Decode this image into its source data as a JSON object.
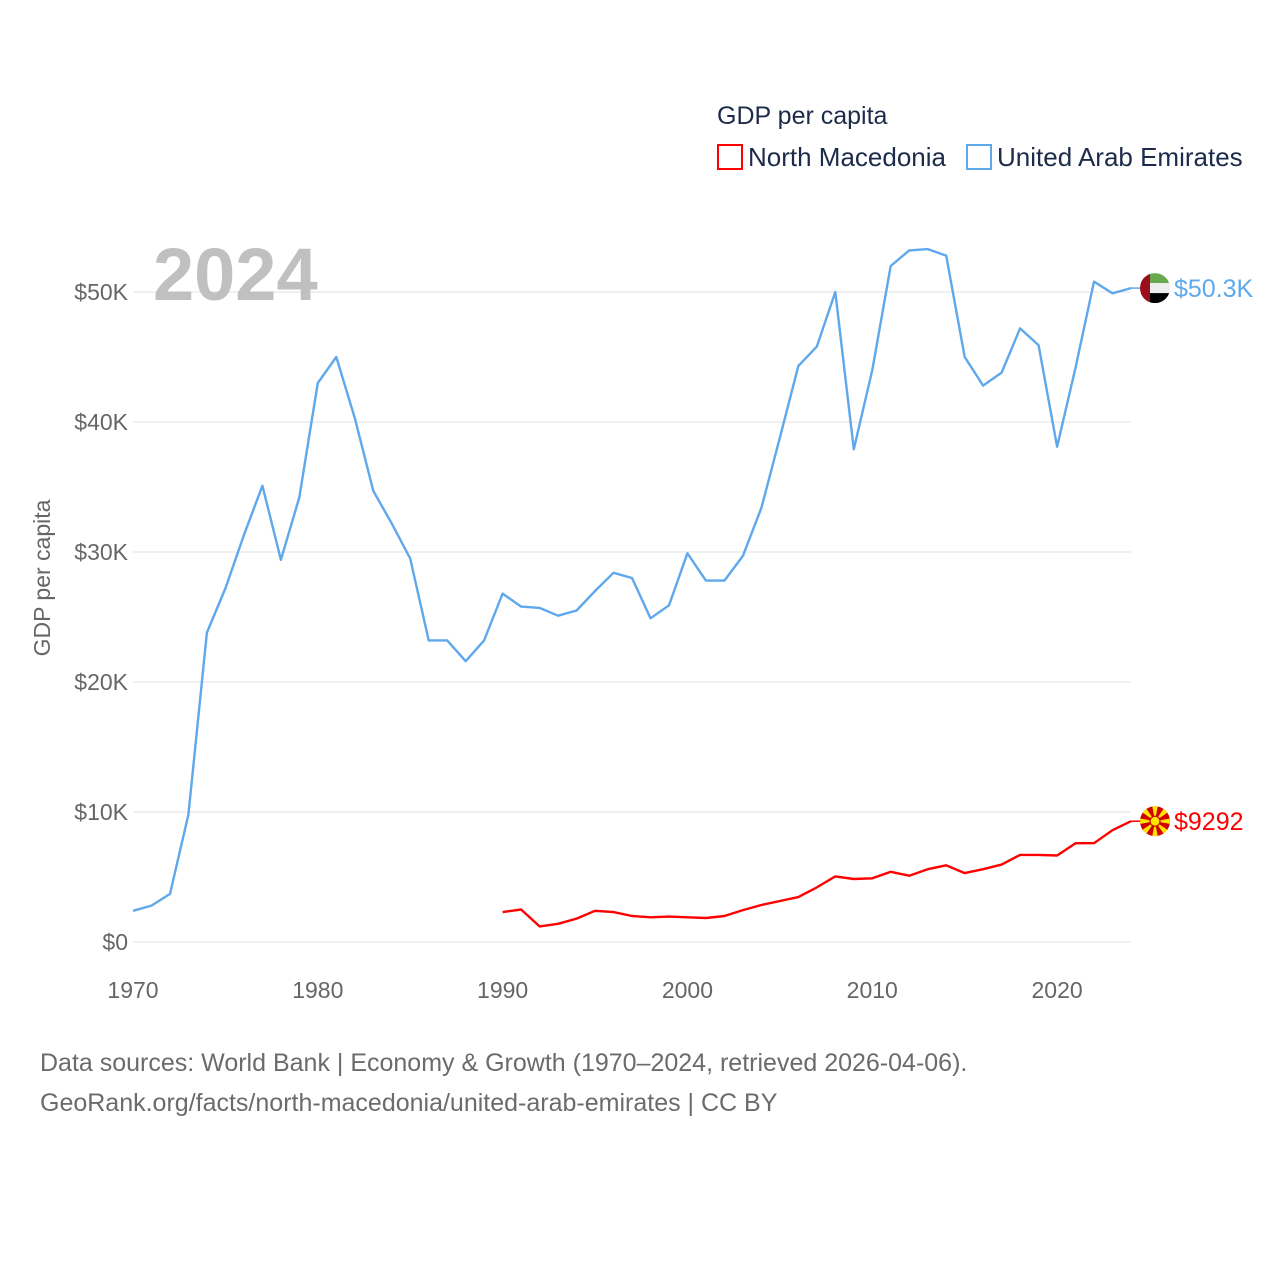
{
  "chart_data": {
    "type": "line",
    "title": "GDP per capita",
    "ylabel": "GDP per capita",
    "xlabel": "",
    "year_label": "2024",
    "xlim": [
      1970,
      2024
    ],
    "ylim": [
      0,
      50000
    ],
    "x_ticks": [
      1970,
      1980,
      1990,
      2000,
      2010,
      2020
    ],
    "y_ticks": [
      {
        "value": 0,
        "label": "$0"
      },
      {
        "value": 10000,
        "label": "$10K"
      },
      {
        "value": 20000,
        "label": "$20K"
      },
      {
        "value": 30000,
        "label": "$30K"
      },
      {
        "value": 40000,
        "label": "$40K"
      },
      {
        "value": 50000,
        "label": "$50K"
      }
    ],
    "grid": true,
    "legend": {
      "title": "GDP per capita",
      "placement": "top-right"
    },
    "series": [
      {
        "name": "North Macedonia",
        "color": "#ff0000",
        "end_label": "$9292",
        "flag": "north-macedonia-flag",
        "x": [
          1990,
          1991,
          1992,
          1993,
          1994,
          1995,
          1996,
          1997,
          1998,
          1999,
          2000,
          2001,
          2002,
          2003,
          2004,
          2005,
          2006,
          2007,
          2008,
          2009,
          2010,
          2011,
          2012,
          2013,
          2014,
          2015,
          2016,
          2017,
          2018,
          2019,
          2020,
          2021,
          2022,
          2023,
          2024
        ],
        "values": [
          2300,
          2500,
          1200,
          1400,
          1800,
          2400,
          2300,
          2000,
          1900,
          1950,
          1900,
          1850,
          2000,
          2450,
          2850,
          3150,
          3450,
          4200,
          5050,
          4850,
          4900,
          5400,
          5100,
          5600,
          5900,
          5300,
          5600,
          5950,
          6700,
          6700,
          6650,
          7600,
          7600,
          8600,
          9292
        ]
      },
      {
        "name": "United Arab Emirates",
        "color": "#5fa8ec",
        "end_label": "$50.3K",
        "flag": "uae-flag",
        "x": [
          1970,
          1971,
          1972,
          1973,
          1974,
          1975,
          1976,
          1977,
          1978,
          1979,
          1980,
          1981,
          1982,
          1983,
          1984,
          1985,
          1986,
          1987,
          1988,
          1989,
          1990,
          1991,
          1992,
          1993,
          1994,
          1995,
          1996,
          1997,
          1998,
          1999,
          2000,
          2001,
          2002,
          2003,
          2004,
          2005,
          2006,
          2007,
          2008,
          2009,
          2010,
          2011,
          2012,
          2013,
          2014,
          2015,
          2016,
          2017,
          2018,
          2019,
          2020,
          2021,
          2022,
          2023,
          2024
        ],
        "values": [
          2400,
          2800,
          3700,
          9800,
          23800,
          27200,
          31300,
          35100,
          29400,
          34200,
          43000,
          45000,
          40300,
          34700,
          32200,
          29500,
          23200,
          23200,
          21600,
          23200,
          26800,
          25800,
          25700,
          25100,
          25500,
          27000,
          28400,
          28000,
          24900,
          25900,
          29900,
          27800,
          27800,
          29700,
          33400,
          38800,
          44300,
          45800,
          50000,
          37900,
          44000,
          52000,
          53200,
          53300,
          52800,
          45000,
          42800,
          43800,
          47200,
          45900,
          38100,
          44200,
          50800,
          49900,
          50300
        ]
      }
    ]
  },
  "footer": {
    "line1": "Data sources: World Bank | Economy & Growth (1970–2024, retrieved 2026-04-06).",
    "line2": "GeoRank.org/facts/north-macedonia/united-arab-emirates | CC BY"
  }
}
